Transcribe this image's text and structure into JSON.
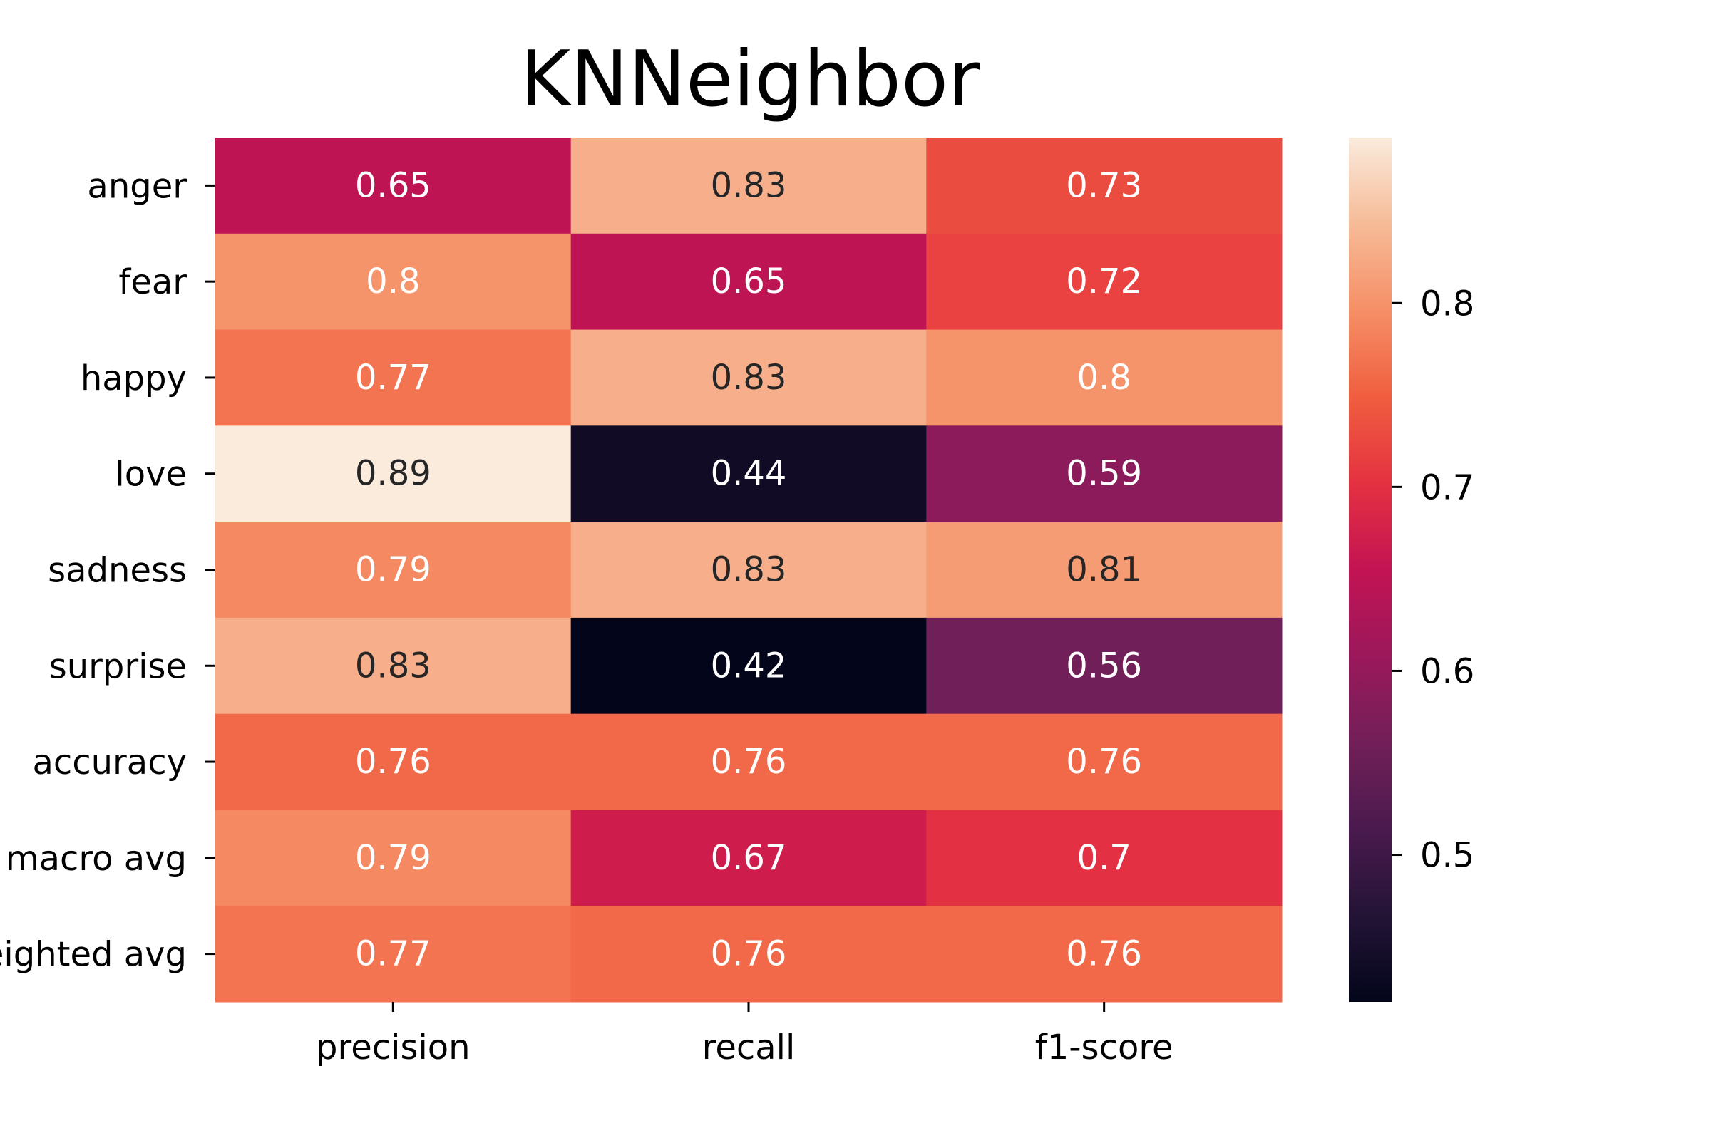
{
  "chart_data": {
    "type": "heatmap",
    "title": "KNNeighbor",
    "rows": [
      "anger",
      "fear",
      "happy",
      "love",
      "sadness",
      "surprise",
      "accuracy",
      "macro avg",
      "weighted avg"
    ],
    "columns": [
      "precision",
      "recall",
      "f1-score"
    ],
    "values": [
      [
        0.65,
        0.83,
        0.73
      ],
      [
        0.8,
        0.65,
        0.72
      ],
      [
        0.77,
        0.83,
        0.8
      ],
      [
        0.89,
        0.44,
        0.59
      ],
      [
        0.79,
        0.83,
        0.81
      ],
      [
        0.83,
        0.42,
        0.56
      ],
      [
        0.76,
        0.76,
        0.76
      ],
      [
        0.79,
        0.67,
        0.7
      ],
      [
        0.77,
        0.76,
        0.76
      ]
    ],
    "annotations": [
      [
        "0.65",
        "0.83",
        "0.73"
      ],
      [
        "0.8",
        "0.65",
        "0.72"
      ],
      [
        "0.77",
        "0.83",
        "0.8"
      ],
      [
        "0.89",
        "0.44",
        "0.59"
      ],
      [
        "0.79",
        "0.83",
        "0.81"
      ],
      [
        "0.83",
        "0.42",
        "0.56"
      ],
      [
        "0.76",
        "0.76",
        "0.76"
      ],
      [
        "0.79",
        "0.67",
        "0.7"
      ],
      [
        "0.77",
        "0.76",
        "0.76"
      ]
    ],
    "colormap": "rocket",
    "colorbar": {
      "range": [
        0.42,
        0.89
      ],
      "ticks": [
        0.5,
        0.6,
        0.7,
        0.8
      ],
      "tick_labels": [
        "0.5",
        "0.6",
        "0.7",
        "0.8"
      ]
    },
    "annotation_colors": {
      "light_text": "#ffffff",
      "dark_text": "#262626"
    }
  }
}
